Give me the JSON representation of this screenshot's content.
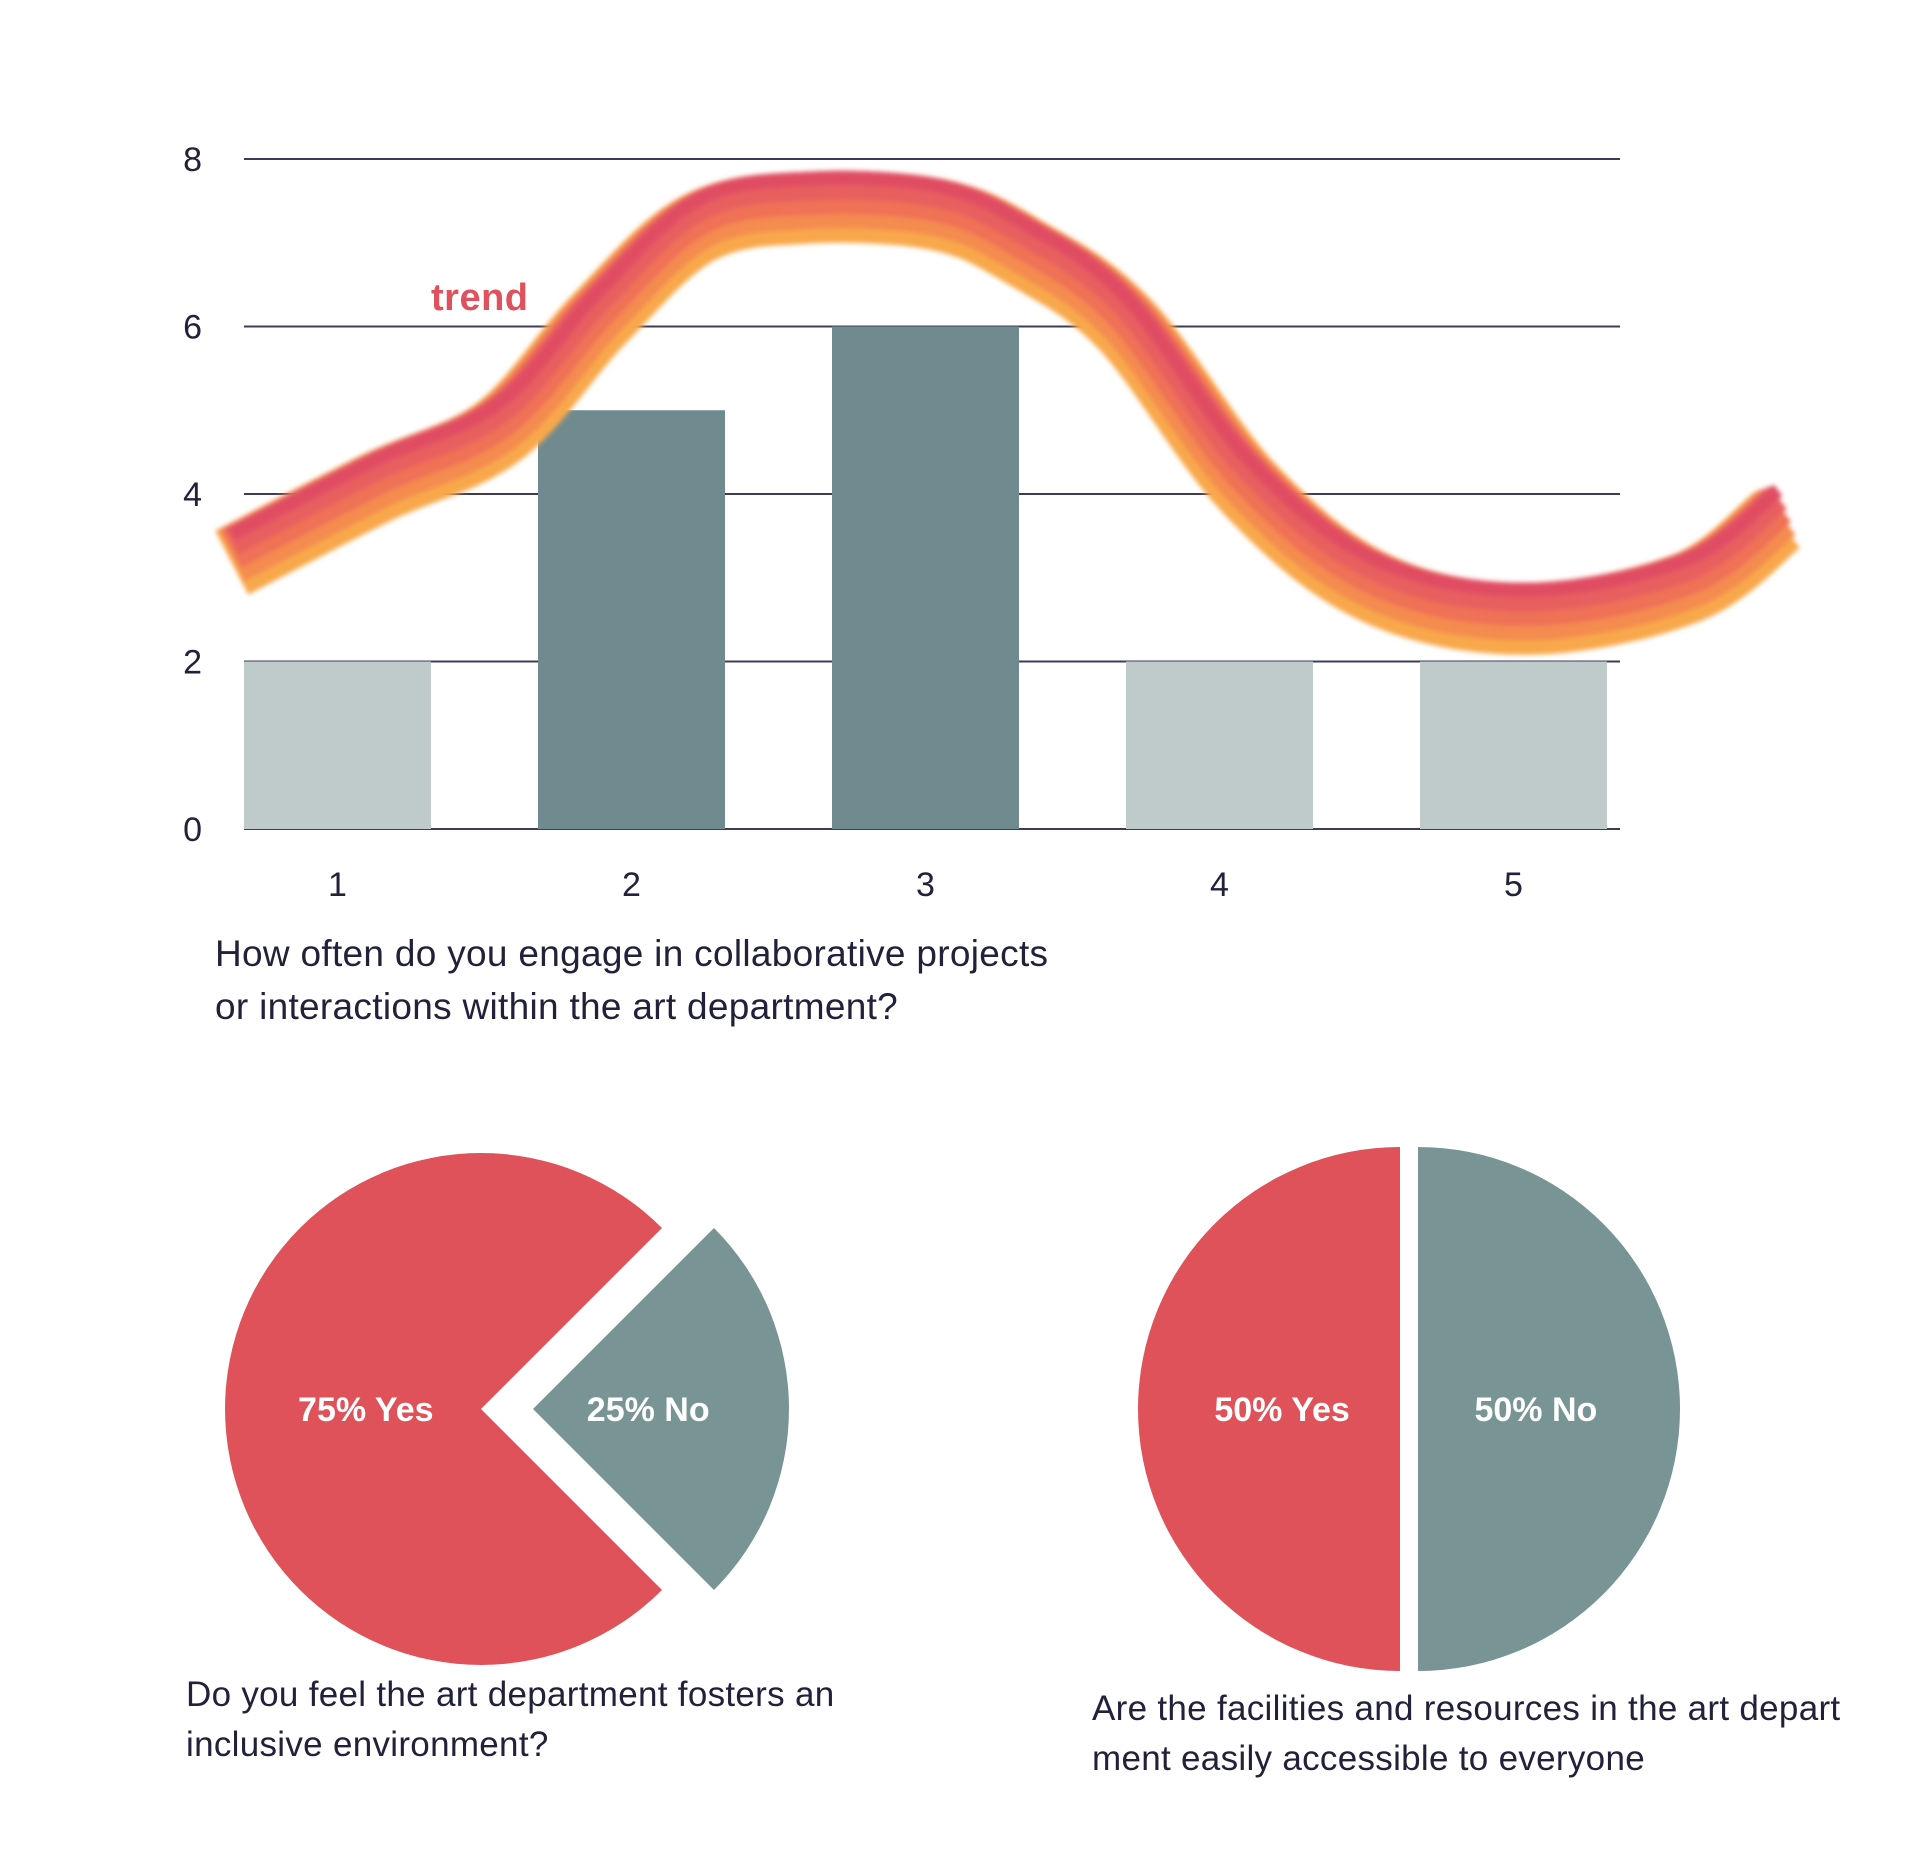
{
  "page": {
    "background": "#ffffff",
    "text_color": "#21213A"
  },
  "chart_data": [
    {
      "type": "bar",
      "title": "",
      "caption": "How often do you engage in collaborative projects\nor interactions within the art department?",
      "categories": [
        "1",
        "2",
        "3",
        "4",
        "5"
      ],
      "values": [
        2,
        5,
        6,
        2,
        2
      ],
      "bar_roles": [
        "light",
        "dark",
        "dark",
        "light",
        "light"
      ],
      "colors": {
        "light": "#BFCBCB",
        "dark": "#6F8B8F",
        "axis_text": "#21213A",
        "gridline": "#3C3C58"
      },
      "ylim": [
        0,
        8
      ],
      "yticks": [
        0,
        2,
        4,
        6,
        8
      ],
      "grid": true,
      "legend": "none",
      "trend": {
        "label": "trend",
        "label_color": "#E0515E",
        "gradient_top_to_bottom": [
          "#E04E64",
          "#E85F5E",
          "#EF7156",
          "#F48B50",
          "#F8A84B"
        ],
        "points": [
          {
            "x": 0.64,
            "y": 3.18
          },
          {
            "x": 1.13,
            "y": 4.07
          },
          {
            "x": 1.55,
            "y": 4.75
          },
          {
            "x": 1.89,
            "y": 6.09
          },
          {
            "x": 2.23,
            "y": 7.18
          },
          {
            "x": 2.61,
            "y": 7.42
          },
          {
            "x": 3.05,
            "y": 7.33
          },
          {
            "x": 3.34,
            "y": 6.88
          },
          {
            "x": 3.68,
            "y": 6.02
          },
          {
            "x": 4.1,
            "y": 4.07
          },
          {
            "x": 4.53,
            "y": 2.88
          },
          {
            "x": 5.04,
            "y": 2.51
          },
          {
            "x": 5.59,
            "y": 2.88
          },
          {
            "x": 5.9,
            "y": 3.7
          }
        ]
      }
    },
    {
      "type": "pie",
      "caption": "Do you feel the art department fosters an\ninclusive environment?",
      "start_angle": -45,
      "label_color": "#FFFFFF",
      "slices": [
        {
          "label": "25% No",
          "value": 25,
          "color": "#789495",
          "pullout": 52
        },
        {
          "label": "75% Yes",
          "value": 75,
          "color": "#E05259",
          "pullout": 0
        }
      ]
    },
    {
      "type": "pie",
      "caption": "Are the facilities and resources in the art depart\nment easily accessible to everyone",
      "start_angle": -90,
      "label_color": "#FFFFFF",
      "slices": [
        {
          "label": "50% No",
          "value": 50,
          "color": "#789495",
          "pullout": 9
        },
        {
          "label": "50% Yes",
          "value": 50,
          "color": "#E05259",
          "pullout": 9
        }
      ]
    }
  ]
}
